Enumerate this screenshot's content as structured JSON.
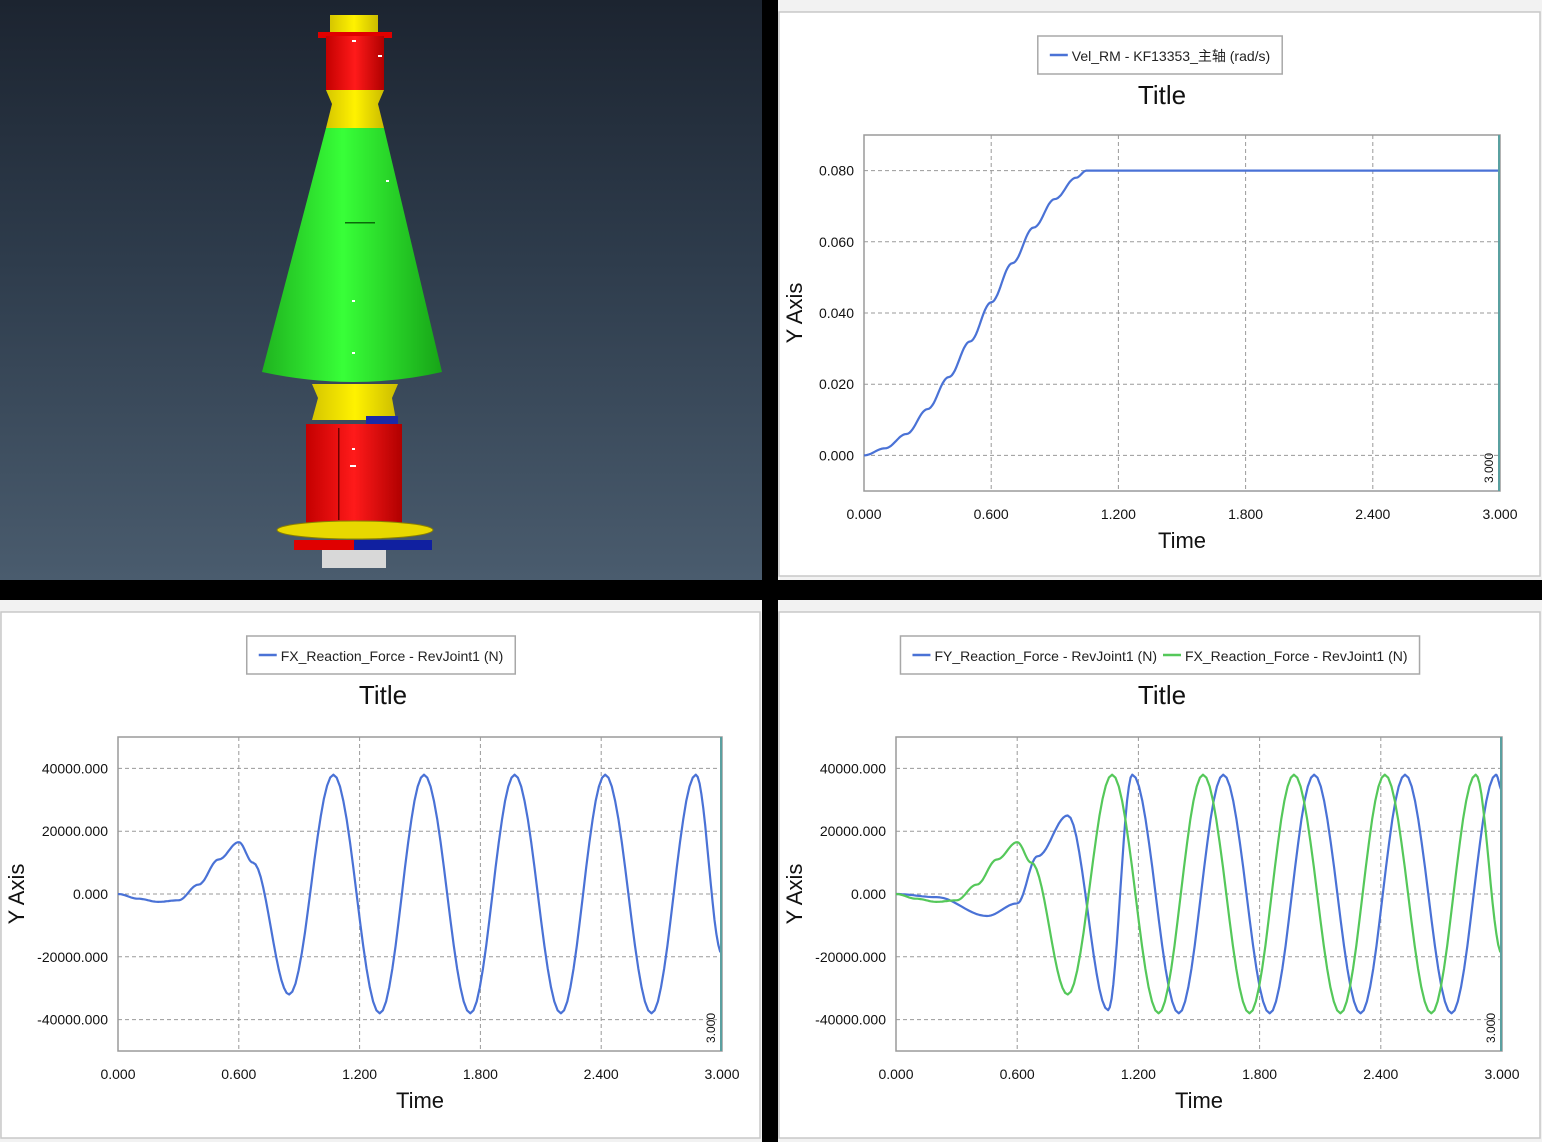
{
  "colors": {
    "blue_series": "#4a72d6",
    "green_series": "#55c85a"
  },
  "viewport": {
    "description_icon": "3d-spindle-model-icon"
  },
  "plots": [
    {
      "id": "p1",
      "title": "Title",
      "xlabel": "Time",
      "ylabel": "Y Axis",
      "end_label": "3.000",
      "legend": [
        {
          "label": "Vel_RM - KF13353_主轴 (rad/s)",
          "color": "#4a72d6"
        }
      ],
      "xticks": [
        "0.000",
        "0.600",
        "1.200",
        "1.800",
        "2.400",
        "3.000"
      ],
      "yticks": [
        "0.000",
        "0.020",
        "0.040",
        "0.060",
        "0.080"
      ]
    },
    {
      "id": "p2",
      "title": "Title",
      "xlabel": "Time",
      "ylabel": "Y Axis",
      "end_label": "3.000",
      "legend": [
        {
          "label": "FX_Reaction_Force - RevJoint1 (N)",
          "color": "#4a72d6"
        }
      ],
      "xticks": [
        "0.000",
        "0.600",
        "1.200",
        "1.800",
        "2.400",
        "3.000"
      ],
      "yticks": [
        "-40000.000",
        "-20000.000",
        "0.000",
        "20000.000",
        "40000.000"
      ]
    },
    {
      "id": "p3",
      "title": "Title",
      "xlabel": "Time",
      "ylabel": "Y Axis",
      "end_label": "3.000",
      "legend": [
        {
          "label": "FY_Reaction_Force - RevJoint1 (N)",
          "color": "#4a72d6"
        },
        {
          "label": "FX_Reaction_Force - RevJoint1 (N)",
          "color": "#55c85a"
        }
      ],
      "xticks": [
        "0.000",
        "0.600",
        "1.200",
        "1.800",
        "2.400",
        "3.000"
      ],
      "yticks": [
        "-40000.000",
        "-20000.000",
        "0.000",
        "20000.000",
        "40000.000"
      ]
    }
  ],
  "chart_data": [
    {
      "type": "line",
      "title": "Title",
      "xlabel": "Time",
      "ylabel": "Y Axis",
      "xlim": [
        0,
        3
      ],
      "ylim": [
        -0.01,
        0.09
      ],
      "grid": true,
      "legend_position": "top-center",
      "series": [
        {
          "name": "Vel_RM - KF13353_主轴 (rad/s)",
          "x": [
            0,
            0.1,
            0.2,
            0.3,
            0.4,
            0.5,
            0.6,
            0.7,
            0.8,
            0.9,
            1.0,
            1.05,
            1.2,
            1.8,
            2.4,
            3.0
          ],
          "y": [
            0,
            0.002,
            0.006,
            0.013,
            0.022,
            0.032,
            0.043,
            0.054,
            0.064,
            0.072,
            0.078,
            0.08,
            0.08,
            0.08,
            0.08,
            0.08
          ]
        }
      ]
    },
    {
      "type": "line",
      "title": "Title",
      "xlabel": "Time",
      "ylabel": "Y Axis",
      "xlim": [
        0,
        3
      ],
      "ylim": [
        -50000,
        50000
      ],
      "grid": true,
      "legend_position": "top-center",
      "series": [
        {
          "name": "FX_Reaction_Force - RevJoint1 (N)",
          "x": [
            0,
            0.1,
            0.2,
            0.3,
            0.4,
            0.5,
            0.6,
            0.67,
            0.85,
            1.07,
            1.3,
            1.52,
            1.75,
            1.97,
            2.2,
            2.42,
            2.65,
            2.87,
            3.0
          ],
          "y": [
            0,
            -1500,
            -2500,
            -2000,
            3000,
            11000,
            16500,
            10000,
            -32000,
            38000,
            -38000,
            38000,
            -38000,
            38000,
            -38000,
            38000,
            -38000,
            38000,
            -19000
          ]
        }
      ]
    },
    {
      "type": "line",
      "title": "Title",
      "xlabel": "Time",
      "ylabel": "Y Axis",
      "xlim": [
        0,
        3
      ],
      "ylim": [
        -50000,
        50000
      ],
      "grid": true,
      "legend_position": "top-center",
      "series": [
        {
          "name": "FY_Reaction_Force - RevJoint1 (N)",
          "x": [
            0,
            0.2,
            0.45,
            0.6,
            0.7,
            0.85,
            1.05,
            1.17,
            1.4,
            1.62,
            1.85,
            2.07,
            2.3,
            2.52,
            2.75,
            2.97,
            3.0
          ],
          "y": [
            0,
            -1000,
            -7000,
            -3000,
            12000,
            25000,
            -37000,
            38000,
            -38000,
            38000,
            -38000,
            38000,
            -38000,
            38000,
            -38000,
            38000,
            33000
          ]
        },
        {
          "name": "FX_Reaction_Force - RevJoint1 (N)",
          "x": [
            0,
            0.1,
            0.2,
            0.3,
            0.4,
            0.5,
            0.6,
            0.67,
            0.85,
            1.07,
            1.3,
            1.52,
            1.75,
            1.97,
            2.2,
            2.42,
            2.65,
            2.87,
            3.0
          ],
          "y": [
            0,
            -1500,
            -2500,
            -2000,
            3000,
            11000,
            16500,
            10000,
            -32000,
            38000,
            -38000,
            38000,
            -38000,
            38000,
            -38000,
            38000,
            -38000,
            38000,
            -19000
          ]
        }
      ]
    }
  ]
}
